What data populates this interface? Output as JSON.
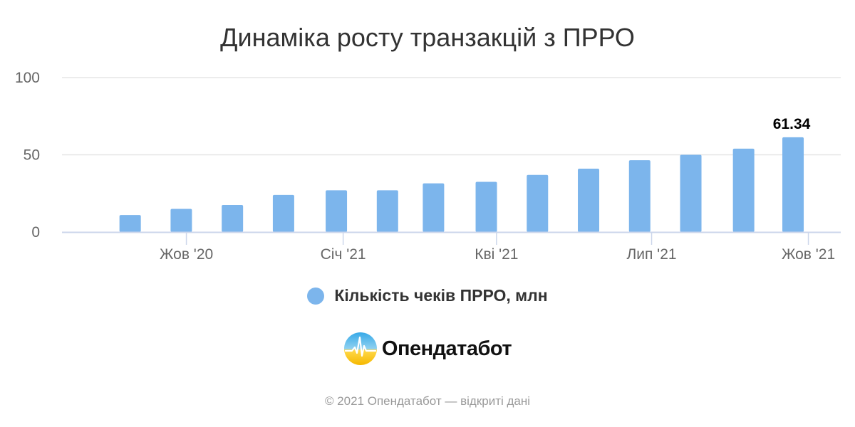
{
  "colors": {
    "bar": "#7cb5ec",
    "grid": "#e6e6e6",
    "axis_line": "#ccd6eb",
    "axis_text": "#666666",
    "title_text": "#333333",
    "data_label": "#000000",
    "credits_text": "#999999"
  },
  "chart_data": {
    "type": "bar",
    "title": "Динаміка росту транзакцій з ПРРО",
    "xlabel": "",
    "ylabel": "",
    "ylim": [
      0,
      100
    ],
    "yticks": [
      {
        "value": 0,
        "label": "0"
      },
      {
        "value": 50,
        "label": "50"
      },
      {
        "value": 100,
        "label": "100"
      }
    ],
    "x_axis": {
      "type": "datetime",
      "range": [
        "2020-07-20",
        "2021-10-20"
      ],
      "ticks": [
        {
          "date": "2020-10-01",
          "label": "Жов '20"
        },
        {
          "date": "2021-01-01",
          "label": "Січ '21"
        },
        {
          "date": "2021-04-01",
          "label": "Кві '21"
        },
        {
          "date": "2021-07-01",
          "label": "Лип '21"
        },
        {
          "date": "2021-10-01",
          "label": "Жов '21"
        }
      ]
    },
    "grid": true,
    "legend_position": "bottom",
    "series": [
      {
        "name": "Кількість чеків ПРРО, млн",
        "points": [
          {
            "date": "2020-08-29",
            "value": 11
          },
          {
            "date": "2020-09-28",
            "value": 15
          },
          {
            "date": "2020-10-28",
            "value": 17.5
          },
          {
            "date": "2020-11-27",
            "value": 24
          },
          {
            "date": "2020-12-28",
            "value": 27
          },
          {
            "date": "2021-01-27",
            "value": 27
          },
          {
            "date": "2021-02-23",
            "value": 31.5
          },
          {
            "date": "2021-03-26",
            "value": 32.5
          },
          {
            "date": "2021-04-25",
            "value": 37
          },
          {
            "date": "2021-05-25",
            "value": 41
          },
          {
            "date": "2021-06-24",
            "value": 46.5
          },
          {
            "date": "2021-07-24",
            "value": 50
          },
          {
            "date": "2021-08-24",
            "value": 54
          },
          {
            "date": "2021-09-22",
            "value": 61.34
          }
        ],
        "data_labels": [
          {
            "date": "2021-09-22",
            "label": "61.34"
          }
        ]
      }
    ]
  },
  "legend": {
    "items": [
      {
        "label": "Кількість чеків ПРРО, млн",
        "icon": "circle-marker-icon"
      }
    ]
  },
  "branding": {
    "logo_icon": "opendatabot-logo-icon",
    "name": "Опендатабот"
  },
  "credits": "© 2021 Опендатабот — відкриті дані"
}
